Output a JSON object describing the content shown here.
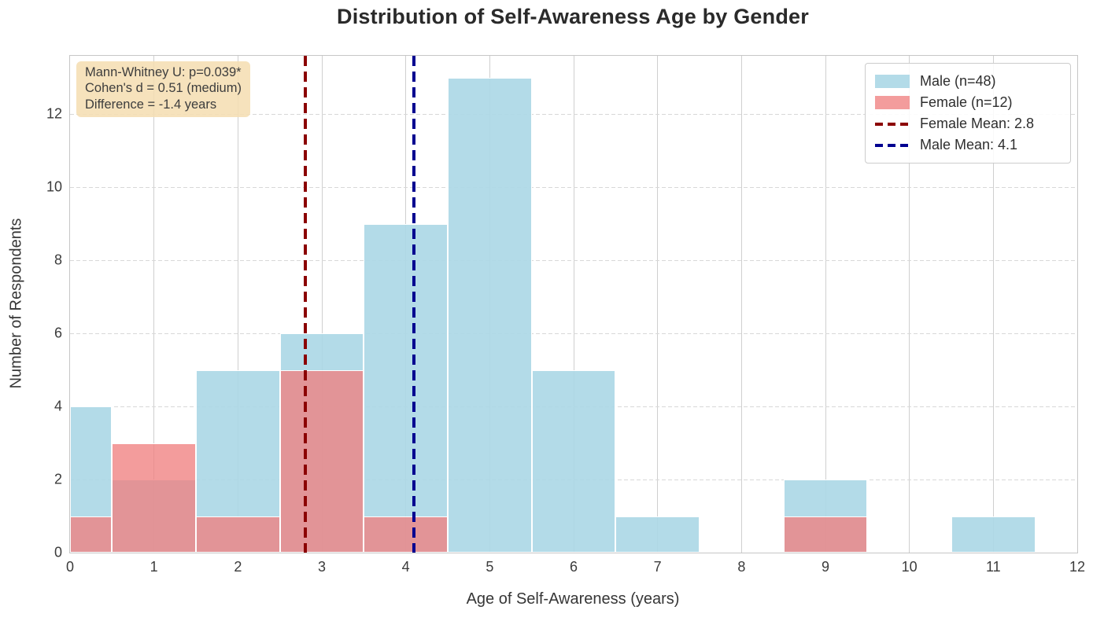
{
  "title": "Distribution of Self-Awareness Age by Gender",
  "axes": {
    "xlabel": "Age of Self-Awareness (years)",
    "ylabel": "Number of Respondents",
    "x_ticks": [
      0,
      1,
      2,
      3,
      4,
      5,
      6,
      7,
      8,
      9,
      10,
      11,
      12
    ],
    "y_ticks": [
      0,
      2,
      4,
      6,
      8,
      10,
      12
    ]
  },
  "annotation": {
    "lines": [
      "Mann-Whitney U: p=0.039*",
      "Cohen's d = 0.51 (medium)",
      "Difference = -1.4 years"
    ],
    "bg_color": "#f5deb3"
  },
  "legend": {
    "position": "upper right",
    "items": [
      {
        "label": "Male (n=48)",
        "swatch": "patch",
        "color": "#ADD8E6",
        "alpha": 0.92
      },
      {
        "label": "Female (n=12)",
        "swatch": "patch",
        "color": "#F08080",
        "alpha": 0.78
      },
      {
        "label": "Female Mean: 2.8",
        "swatch": "dash",
        "color": "#8B0000",
        "alpha": 1
      },
      {
        "label": "Male Mean: 4.1",
        "swatch": "dash",
        "color": "#000090",
        "alpha": 1
      }
    ]
  },
  "chart_data": {
    "type": "bar",
    "subtype": "overlaid-histogram",
    "title": "Distribution of Self-Awareness Age by Gender",
    "xlabel": "Age of Self-Awareness (years)",
    "ylabel": "Number of Respondents",
    "xlim": [
      0,
      12
    ],
    "ylim": [
      0,
      13.6
    ],
    "grid": {
      "x_style": "solid",
      "y_style": "dashed"
    },
    "bin_width": 1,
    "bin_centers": [
      0,
      1,
      2,
      3,
      4,
      5,
      6,
      7,
      8,
      9,
      10,
      11
    ],
    "series": [
      {
        "name": "Male (n=48)",
        "key": "male",
        "color": "#ADD8E6",
        "fill_alpha": 0.92,
        "total": 48,
        "counts": [
          4,
          2,
          5,
          6,
          9,
          13,
          5,
          1,
          0,
          2,
          0,
          1
        ]
      },
      {
        "name": "Female (n=12)",
        "key": "female",
        "color": "#F08080",
        "fill_alpha": 0.78,
        "total": 12,
        "counts": [
          1,
          3,
          1,
          5,
          1,
          0,
          0,
          0,
          0,
          1,
          0,
          0
        ]
      }
    ],
    "mean_lines": [
      {
        "label": "Female Mean: 2.8",
        "value": 2.8,
        "color": "#8B0000"
      },
      {
        "label": "Male Mean: 4.1",
        "value": 4.1,
        "color": "#000090"
      }
    ],
    "stats": {
      "mann_whitney_p": "0.039*",
      "cohens_d": "0.51 (medium)",
      "difference_years": "-1.4"
    }
  }
}
